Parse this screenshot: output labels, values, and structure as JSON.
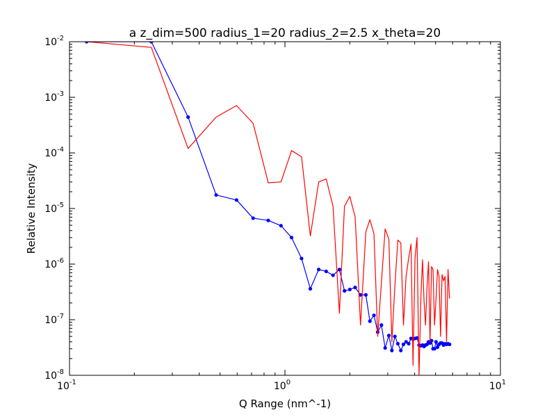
{
  "chart_data": {
    "type": "line",
    "title": "a z_dim=500 radius_1=20 radius_2=2.5 x_theta=20",
    "xlabel": "Q Range (nm^-1)",
    "ylabel": "Relative Intensity",
    "xscale": "log",
    "yscale": "log",
    "xlim": [
      0.1,
      10
    ],
    "ylim": [
      1e-08,
      0.01
    ],
    "grid": false,
    "legend": "none",
    "x_ticks": [
      {
        "base": "10",
        "exp": "-1",
        "value": 0.1
      },
      {
        "base": "10",
        "exp": "0",
        "value": 1
      },
      {
        "base": "10",
        "exp": "1",
        "value": 10
      }
    ],
    "y_ticks": [
      {
        "base": "10",
        "exp": "-8",
        "value": 1e-08
      },
      {
        "base": "10",
        "exp": "-7",
        "value": 1e-07
      },
      {
        "base": "10",
        "exp": "-6",
        "value": 1e-06
      },
      {
        "base": "10",
        "exp": "-5",
        "value": 1e-05
      },
      {
        "base": "10",
        "exp": "-4",
        "value": 0.0001
      },
      {
        "base": "10",
        "exp": "-3",
        "value": 0.001
      },
      {
        "base": "10",
        "exp": "-2",
        "value": 0.01
      }
    ],
    "series": [
      {
        "color": "#0000ff",
        "marker": "dot",
        "x": [
          0.1201,
          0.2398,
          0.3552,
          0.4793,
          0.5963,
          0.7116,
          0.8367,
          0.9586,
          1.0733,
          1.1944,
          1.3115,
          1.4342,
          1.5536,
          1.6716,
          1.7898,
          1.8896,
          2.0004,
          2.1177,
          2.2419,
          2.3738,
          2.4791,
          2.5893,
          2.6945,
          2.804,
          2.9177,
          3.0362,
          3.1353,
          3.2371,
          3.3417,
          3.4501,
          3.5483,
          3.6492,
          3.753,
          3.8477,
          3.9306,
          4.0155,
          4.1022,
          4.1908,
          4.2813,
          4.3505,
          4.4207,
          4.4921,
          4.565,
          4.6388,
          4.7138,
          4.79,
          4.8677,
          4.9461,
          5.0262,
          5.1075,
          5.1901,
          5.274,
          5.3592,
          5.4458,
          5.5338,
          5.6233,
          5.7141,
          5.8064
        ],
        "y": [
          0.01,
          0.01,
          0.00044,
          1.75e-05,
          1.42e-05,
          6.7e-06,
          6.1e-06,
          4.9e-06,
          3e-06,
          1.26e-06,
          3.6e-07,
          8e-07,
          7.4e-07,
          6.3e-07,
          8e-07,
          3.3e-07,
          3.5e-07,
          3.8e-07,
          2.8e-07,
          2.8e-07,
          9.4e-08,
          1.2e-07,
          6e-08,
          8e-08,
          3.1e-08,
          5.2e-08,
          2.8e-08,
          5e-08,
          3.7e-08,
          2.8e-08,
          3.6e-08,
          4e-08,
          3.7e-08,
          4.6e-08,
          4.5e-08,
          4.6e-08,
          4.7e-08,
          3.5e-08,
          3.4e-08,
          3.5e-08,
          3.3e-08,
          3.5e-08,
          3.6e-08,
          4e-08,
          3.8e-08,
          4.2e-08,
          3e-08,
          3e-08,
          4e-08,
          3.2e-08,
          3.6e-08,
          3.8e-08,
          3.8e-08,
          3.5e-08,
          3.7e-08,
          3.6e-08,
          3.7e-08,
          3.6e-08
        ]
      },
      {
        "color": "#ff0000",
        "marker": "none",
        "x": [
          0.1201,
          0.2398,
          0.3552,
          0.4793,
          0.5963,
          0.7116,
          0.8367,
          0.9586,
          1.0733,
          1.1944,
          1.3115,
          1.4342,
          1.5536,
          1.6716,
          1.7898,
          1.8896,
          2.0004,
          2.1177,
          2.2419,
          2.3738,
          2.4791,
          2.5893,
          2.6945,
          2.804,
          2.9177,
          3.0362,
          3.1353,
          3.2371,
          3.3417,
          3.4501,
          3.5483,
          3.6492,
          3.753,
          3.8477,
          3.9306,
          4.0155,
          4.1022,
          4.1908,
          4.2813,
          4.3505,
          4.4207,
          4.4921,
          4.565,
          4.6388,
          4.7138,
          4.79,
          4.8677,
          4.9461,
          5.0262,
          5.1075,
          5.1901,
          5.274,
          5.3592,
          5.4458,
          5.5338,
          5.6233,
          5.7141,
          5.8064
        ],
        "y": [
          0.01,
          0.0079,
          0.00012,
          0.00044,
          0.00071,
          0.00034,
          2.9e-05,
          3e-05,
          0.00011,
          8.5e-05,
          3.2e-06,
          3e-05,
          3.4e-05,
          1.1e-05,
          1.3e-07,
          1.1e-05,
          1.65e-05,
          7e-06,
          8e-08,
          3.8e-06,
          6.3e-06,
          3.5e-06,
          5e-08,
          4.7e-07,
          4.3e-06,
          2.8e-06,
          4e-08,
          4e-07,
          2.7e-06,
          2.4e-06,
          8e-08,
          6e-07,
          1.3e-06,
          2.3e-06,
          1.5e-08,
          1.3e-06,
          3e-06,
          1e-08,
          3e-07,
          1.2e-06,
          2.2e-07,
          8e-08,
          4e-07,
          1.1e-06,
          4e-08,
          9e-07,
          8e-07,
          8e-08,
          2.4e-07,
          8e-07,
          6e-07,
          5e-08,
          6.5e-07,
          5e-07,
          6e-07,
          4e-08,
          8e-07,
          2.4e-07
        ]
      }
    ]
  }
}
